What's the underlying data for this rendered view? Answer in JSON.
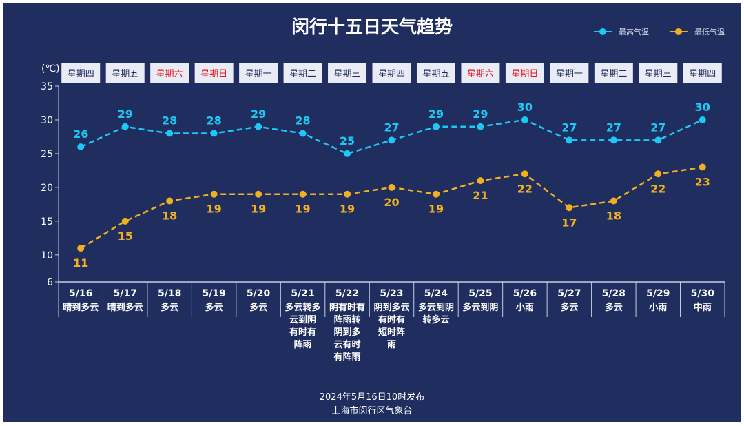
{
  "chart_data": {
    "type": "line",
    "title": "闵行十五日天气趋势",
    "ylabel": "(℃)",
    "ylim": [
      6,
      35
    ],
    "yticks": [
      6,
      10,
      15,
      20,
      25,
      30,
      35
    ],
    "grid": false,
    "legend_placement": "top-right",
    "categories": [
      "5/16",
      "5/17",
      "5/18",
      "5/19",
      "5/20",
      "5/21",
      "5/22",
      "5/23",
      "5/24",
      "5/25",
      "5/26",
      "5/27",
      "5/28",
      "5/29",
      "5/30"
    ],
    "weekdays": [
      "星期四",
      "星期五",
      "星期六",
      "星期日",
      "星期一",
      "星期二",
      "星期三",
      "星期四",
      "星期五",
      "星期六",
      "星期日",
      "星期一",
      "星期二",
      "星期三",
      "星期四"
    ],
    "weekend": [
      false,
      false,
      true,
      true,
      false,
      false,
      false,
      false,
      false,
      true,
      true,
      false,
      false,
      false,
      false
    ],
    "weather": [
      [
        "晴到多云"
      ],
      [
        "晴到多云"
      ],
      [
        "多云"
      ],
      [
        "多云"
      ],
      [
        "多云"
      ],
      [
        "多云转多",
        "云到阴",
        "有时有",
        "阵雨"
      ],
      [
        "阴有时有",
        "阵雨转",
        "阴到多",
        "云有时",
        "有阵雨"
      ],
      [
        "阴到多云",
        "有时有",
        "短时阵",
        "雨"
      ],
      [
        "多云到阴",
        "转多云"
      ],
      [
        "多云到阴"
      ],
      [
        "小雨"
      ],
      [
        "多云"
      ],
      [
        "多云"
      ],
      [
        "小雨"
      ],
      [
        "中雨"
      ]
    ],
    "series": [
      {
        "name": "最高气温",
        "color": "#1ec8f5",
        "values": [
          26,
          29,
          28,
          28,
          29,
          28,
          25,
          27,
          29,
          29,
          30,
          27,
          27,
          27,
          30
        ]
      },
      {
        "name": "最低气温",
        "color": "#f0b020",
        "values": [
          11,
          15,
          18,
          19,
          19,
          19,
          19,
          20,
          19,
          21,
          22,
          17,
          18,
          22,
          23
        ]
      }
    ]
  },
  "footer": {
    "issued": "2024年5月16日10时发布",
    "issuer": "上海市闵行区气象台"
  },
  "colors": {
    "background": "#1f2d5f",
    "weekend_text": "#e8141e",
    "weekday_text": "#1f2d5f"
  }
}
